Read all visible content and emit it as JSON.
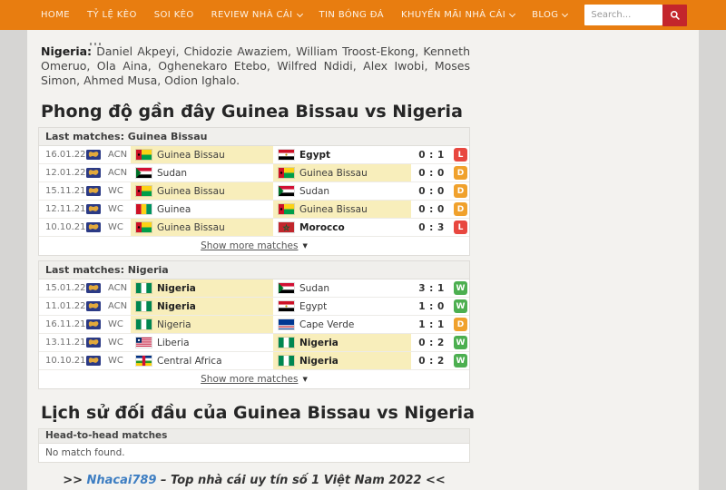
{
  "nav": {
    "items": [
      {
        "label": "HOME",
        "dropdown": false
      },
      {
        "label": "TỶ LỆ KÈO",
        "dropdown": false
      },
      {
        "label": "SOI KÈO",
        "dropdown": false
      },
      {
        "label": "REVIEW NHÀ CÁI",
        "dropdown": true
      },
      {
        "label": "TIN BÓNG ĐÁ",
        "dropdown": false
      },
      {
        "label": "KHUYẾN MÃI NHÀ CÁI",
        "dropdown": true
      },
      {
        "label": "BLOG",
        "dropdown": true
      }
    ],
    "search_placeholder": "Search..."
  },
  "article": {
    "nigeria_label": "Nigeria:",
    "nigeria_players": " Daniel Akpeyi, Chidozie Awaziem, William Troost-Ekong, Kenneth Omeruo, Ola Aina, Oghenekaro Etebo, Wilfred Ndidi, Alex Iwobi, Moses Simon, Ahmed Musa, Odion Ighalo.",
    "heading_recent_form": "Phong độ gần đây Guinea Bissau vs Nigeria",
    "heading_head_to_head": "Lịch sử đối đầu của Guinea Bissau vs Nigeria"
  },
  "tables": [
    {
      "title": "Last matches: Guinea Bissau",
      "show_more_label": "Show more matches",
      "rows": [
        {
          "date": "16.01.22",
          "comp": "ACN",
          "home": {
            "name": "Guinea Bissau",
            "flag": "guinea-bissau",
            "highlight": true,
            "winner": false
          },
          "away": {
            "name": "Egypt",
            "flag": "egypt",
            "highlight": false,
            "winner": true
          },
          "score": "0 : 1",
          "result": "L"
        },
        {
          "date": "12.01.22",
          "comp": "ACN",
          "home": {
            "name": "Sudan",
            "flag": "sudan",
            "highlight": false,
            "winner": false
          },
          "away": {
            "name": "Guinea Bissau",
            "flag": "guinea-bissau",
            "highlight": true,
            "winner": false
          },
          "score": "0 : 0",
          "result": "D"
        },
        {
          "date": "15.11.21",
          "comp": "WC",
          "home": {
            "name": "Guinea Bissau",
            "flag": "guinea-bissau",
            "highlight": true,
            "winner": false
          },
          "away": {
            "name": "Sudan",
            "flag": "sudan",
            "highlight": false,
            "winner": false
          },
          "score": "0 : 0",
          "result": "D"
        },
        {
          "date": "12.11.21",
          "comp": "WC",
          "home": {
            "name": "Guinea",
            "flag": "guinea",
            "highlight": false,
            "winner": false
          },
          "away": {
            "name": "Guinea Bissau",
            "flag": "guinea-bissau",
            "highlight": true,
            "winner": false
          },
          "score": "0 : 0",
          "result": "D"
        },
        {
          "date": "10.10.21",
          "comp": "WC",
          "home": {
            "name": "Guinea Bissau",
            "flag": "guinea-bissau",
            "highlight": true,
            "winner": false
          },
          "away": {
            "name": "Morocco",
            "flag": "morocco",
            "highlight": false,
            "winner": true
          },
          "score": "0 : 3",
          "result": "L"
        }
      ]
    },
    {
      "title": "Last matches: Nigeria",
      "show_more_label": "Show more matches",
      "rows": [
        {
          "date": "15.01.22",
          "comp": "ACN",
          "home": {
            "name": "Nigeria",
            "flag": "nigeria",
            "highlight": true,
            "winner": true
          },
          "away": {
            "name": "Sudan",
            "flag": "sudan",
            "highlight": false,
            "winner": false
          },
          "score": "3 : 1",
          "result": "W"
        },
        {
          "date": "11.01.22",
          "comp": "ACN",
          "home": {
            "name": "Nigeria",
            "flag": "nigeria",
            "highlight": true,
            "winner": true
          },
          "away": {
            "name": "Egypt",
            "flag": "egypt",
            "highlight": false,
            "winner": false
          },
          "score": "1 : 0",
          "result": "W"
        },
        {
          "date": "16.11.21",
          "comp": "WC",
          "home": {
            "name": "Nigeria",
            "flag": "nigeria",
            "highlight": true,
            "winner": false
          },
          "away": {
            "name": "Cape Verde",
            "flag": "cape-verde",
            "highlight": false,
            "winner": false
          },
          "score": "1 : 1",
          "result": "D"
        },
        {
          "date": "13.11.21",
          "comp": "WC",
          "home": {
            "name": "Liberia",
            "flag": "liberia",
            "highlight": false,
            "winner": false
          },
          "away": {
            "name": "Nigeria",
            "flag": "nigeria",
            "highlight": true,
            "winner": true
          },
          "score": "0 : 2",
          "result": "W"
        },
        {
          "date": "10.10.21",
          "comp": "WC",
          "home": {
            "name": "Central Africa",
            "flag": "central-africa",
            "highlight": false,
            "winner": false
          },
          "away": {
            "name": "Nigeria",
            "flag": "nigeria",
            "highlight": true,
            "winner": true
          },
          "score": "0 : 2",
          "result": "W"
        }
      ]
    }
  ],
  "head_to_head": {
    "title": "Head-to-head matches",
    "empty_message": "No match found."
  },
  "footer": {
    "prefix": ">> ",
    "link_text": "Nhacai789",
    "suffix": " – Top nhà cái uy tín số 1 Việt Nam 2022 <<"
  },
  "colors": {
    "nav_bar": "#e87d10",
    "search_button": "#c3262c",
    "highlight_cell": "#f8eebb",
    "footer_link": "#3e7ec2",
    "result": {
      "W": "#4caf50",
      "D": "#f0a12c",
      "L": "#e8473f"
    }
  }
}
